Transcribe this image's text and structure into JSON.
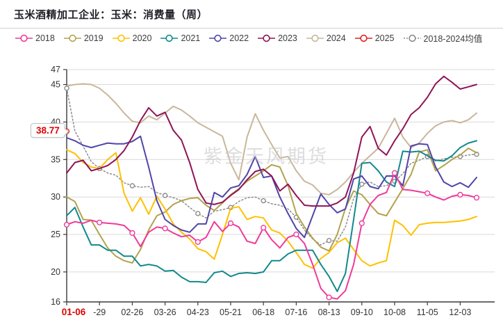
{
  "title": "玉米酒精加工企业：玉米：消费量（周）",
  "watermark": "紫金天风期货",
  "annotation": {
    "text": "38.77",
    "color": "#e00000",
    "value": 38.77
  },
  "chart_data": {
    "type": "line",
    "title": "玉米酒精加工企业：玉米：消费量（周）",
    "xlabel": "",
    "ylabel": "",
    "ylim": [
      16,
      47
    ],
    "y_ticks": [
      16,
      20,
      25,
      30,
      35,
      40,
      45,
      47
    ],
    "grid": "horizontal",
    "legend_position": "top",
    "n_points": 51,
    "x_labels": [
      "01-06",
      "-29",
      "02-26",
      "03-26",
      "04-23",
      "05-21",
      "06-18",
      "07-16",
      "08-13",
      "09-10",
      "10-08",
      "11-05",
      "12-03"
    ],
    "x_label_weeks": [
      0,
      4,
      8,
      12,
      16,
      20,
      24,
      28,
      32,
      36,
      40,
      44,
      48
    ],
    "x_first_label_color": "#e00000",
    "axis_color": "#3a3a3a",
    "grid_color": "#d9d9d9",
    "series": [
      {
        "name": "2024",
        "color": "#c9b69b",
        "style": "solid",
        "markers": false,
        "values": [
          44.8,
          45.0,
          45.1,
          45.0,
          44.5,
          43.6,
          42.5,
          41.2,
          40.1,
          39.9,
          40.8,
          40.3,
          41.2,
          42.1,
          41.6,
          40.8,
          39.9,
          39.3,
          38.7,
          38.1,
          34.5,
          32.3,
          38.0,
          41.1,
          38.9,
          37.0,
          35.2,
          35.4,
          33.5,
          32.1,
          31.6,
          30.5,
          30.3,
          31.0,
          32.0,
          33.3,
          34.5,
          35.5,
          36.5,
          38.5,
          40.5,
          38.0,
          36.6,
          37.2,
          38.5,
          39.5,
          40.0,
          40.2,
          39.9,
          40.3,
          41.2
        ]
      },
      {
        "name": "2018-2024均值",
        "color": "#8c8c8c",
        "style": "dotted",
        "markers": true,
        "values": [
          44.5,
          38.8,
          36.8,
          34.7,
          33.8,
          33.2,
          32.9,
          31.9,
          31.5,
          31.3,
          31.4,
          30.6,
          30.2,
          29.9,
          29.5,
          28.6,
          27.8,
          27.2,
          28.1,
          28.3,
          28.6,
          29.4,
          29.9,
          30.0,
          29.5,
          29.1,
          28.9,
          28.4,
          27.3,
          25.6,
          24.4,
          23.6,
          24.2,
          24.1,
          26.0,
          29.8,
          31.7,
          32.0,
          31.4,
          31.5,
          32.1,
          33.1,
          34.5,
          34.9,
          35.4,
          34.8,
          35.1,
          35.3,
          35.4,
          35.6,
          35.7
        ]
      },
      {
        "name": "2019",
        "color": "#b2a24e",
        "style": "solid",
        "markers": false,
        "values": [
          30.0,
          29.4,
          27.0,
          26.9,
          25.0,
          23.2,
          22.1,
          21.5,
          21.2,
          23.0,
          25.6,
          27.5,
          28.0,
          29.0,
          29.5,
          29.8,
          29.9,
          28.9,
          28.2,
          29.2,
          30.3,
          31.1,
          32.1,
          32.8,
          33.5,
          34.3,
          34.0,
          31.5,
          27.8,
          26.0,
          24.5,
          23.3,
          22.8,
          25.0,
          28.5,
          30.8,
          30.3,
          29.0,
          27.8,
          27.5,
          29.3,
          31.1,
          33.0,
          36.0,
          36.3,
          33.5,
          34.2,
          35.0,
          35.6,
          36.5,
          35.9
        ]
      },
      {
        "name": "2020",
        "color": "#ffc000",
        "style": "solid",
        "markers": false,
        "values": [
          36.3,
          35.8,
          34.6,
          34.0,
          33.8,
          35.0,
          35.9,
          30.5,
          28.1,
          29.9,
          27.7,
          30.1,
          28.4,
          26.4,
          25.3,
          24.4,
          23.1,
          22.7,
          21.7,
          25.0,
          28.5,
          28.7,
          27.0,
          27.4,
          27.2,
          25.6,
          25.2,
          24.1,
          22.6,
          21.0,
          20.5,
          21.8,
          22.6,
          23.9,
          24.5,
          23.0,
          21.5,
          20.8,
          21.2,
          21.5,
          26.9,
          26.2,
          24.9,
          26.3,
          26.5,
          26.6,
          26.6,
          26.7,
          26.8,
          27.0,
          27.4
        ]
      },
      {
        "name": "2021",
        "color": "#12888d",
        "style": "solid",
        "markers": false,
        "values": [
          27.5,
          28.6,
          26.0,
          23.6,
          23.6,
          22.9,
          22.9,
          22.1,
          22.1,
          20.8,
          21.0,
          20.8,
          20.1,
          20.2,
          19.3,
          18.7,
          18.7,
          18.6,
          19.9,
          20.1,
          19.4,
          19.8,
          19.9,
          19.8,
          20.0,
          21.5,
          21.5,
          22.4,
          22.9,
          22.9,
          22.9,
          21.0,
          19.4,
          17.4,
          19.8,
          27.0,
          34.5,
          34.6,
          33.5,
          32.0,
          31.4,
          36.1,
          36.0,
          36.1,
          35.5,
          34.9,
          34.8,
          35.5,
          36.6,
          37.2,
          37.5
        ]
      },
      {
        "name": "2022",
        "color": "#4f45a8",
        "style": "solid",
        "markers": false,
        "values": [
          37.9,
          37.5,
          36.9,
          36.6,
          36.9,
          37.2,
          37.1,
          37.1,
          37.4,
          38.1,
          34.0,
          29.5,
          27.0,
          26.2,
          25.6,
          25.3,
          26.4,
          26.4,
          30.6,
          30.0,
          31.2,
          31.5,
          33.0,
          35.4,
          32.6,
          32.8,
          30.0,
          27.8,
          25.8,
          24.6,
          27.5,
          30.4,
          29.0,
          27.9,
          28.4,
          32.4,
          32.8,
          31.4,
          31.1,
          32.8,
          32.8,
          31.5,
          36.8,
          37.1,
          37.0,
          34.0,
          32.0,
          31.4,
          31.9,
          31.3,
          32.6
        ]
      },
      {
        "name": "2018",
        "color": "#ef3a9a",
        "style": "solid",
        "markers": true,
        "values": [
          26.3,
          26.7,
          26.5,
          26.9,
          26.6,
          26.5,
          26.4,
          26.2,
          25.2,
          23.4,
          25.3,
          26.0,
          25.8,
          25.2,
          24.7,
          24.9,
          24.0,
          24.6,
          26.7,
          25.4,
          26.5,
          26.0,
          24.1,
          23.8,
          25.9,
          24.3,
          23.2,
          24.6,
          25.0,
          23.8,
          21.0,
          17.8,
          16.6,
          16.4,
          17.5,
          21.0,
          26.5,
          29.0,
          30.2,
          30.6,
          33.2,
          31.0,
          30.9,
          30.7,
          30.5,
          30.0,
          29.6,
          30.1,
          30.3,
          30.2,
          29.9
        ]
      },
      {
        "name": "2023",
        "color": "#8f1457",
        "style": "solid",
        "markers": false,
        "values": [
          33.2,
          34.6,
          34.9,
          33.5,
          33.8,
          34.2,
          35.0,
          36.2,
          38.0,
          40.2,
          41.9,
          40.8,
          41.3,
          38.9,
          37.6,
          34.6,
          31.0,
          29.2,
          29.0,
          29.3,
          30.2,
          31.0,
          32.3,
          33.4,
          33.7,
          32.8,
          30.8,
          31.7,
          30.2,
          28.9,
          28.8,
          28.8,
          28.8,
          29.2,
          30.0,
          33.2,
          38.0,
          39.4,
          36.5,
          35.6,
          37.5,
          39.1,
          41.0,
          41.9,
          43.3,
          45.1,
          46.1,
          45.3,
          44.4,
          44.7,
          45.0
        ]
      },
      {
        "name": "2025",
        "color": "#e02222",
        "style": "solid",
        "markers": true,
        "values": [
          38.77
        ]
      }
    ],
    "legend_order": [
      "2018",
      "2019",
      "2020",
      "2021",
      "2022",
      "2023",
      "2024",
      "2025",
      "2018-2024均值"
    ]
  }
}
